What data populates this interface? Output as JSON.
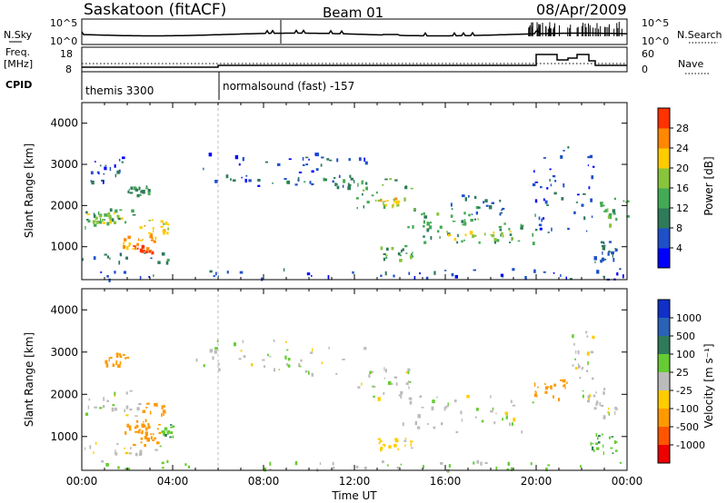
{
  "header": {
    "station": "Saskatoon (fitACF)",
    "beam": "Beam 01",
    "date": "08/Apr/2009"
  },
  "noise_panel": {
    "left_label": "N.Sky",
    "right_label": "N.Search",
    "left_ticks": [
      "10^5",
      "10^0"
    ],
    "right_ticks": [
      "10^5",
      "10^0"
    ]
  },
  "freq_panel": {
    "left_label_top": "Freq.",
    "left_label_bottom": "[MHz]",
    "right_label": "Nave",
    "left_ticks": [
      "18",
      "8"
    ],
    "right_ticks": [
      "60",
      "0"
    ]
  },
  "cpid": {
    "label": "CPID",
    "segments": [
      {
        "name": "themis 3300",
        "start_hour": 0
      },
      {
        "name": "normalsound (fast) -157",
        "start_hour": 6
      }
    ]
  },
  "colors": {
    "power": [
      "#0000ff",
      "#1e50c8",
      "#2e7b5a",
      "#44aa55",
      "#88c43c",
      "#ffcc00",
      "#ff8800",
      "#ff3300",
      "#ee0000"
    ],
    "velocity": [
      "#1030c8",
      "#2a62b8",
      "#2e7b5a",
      "#66cc33",
      "#bbbbbb",
      "#ffcc00",
      "#ff9900",
      "#ff5500",
      "#ee0000"
    ]
  },
  "chart_data": [
    {
      "type": "heatmap",
      "name": "power",
      "xlabel": "",
      "ylabel": "Slant Range [km]",
      "xlim": [
        0,
        24
      ],
      "ylim": [
        200,
        4500
      ],
      "yticks": [
        "1000",
        "2000",
        "3000",
        "4000"
      ],
      "colorbar_label": "Power [dB]",
      "colorbar_ticks": [
        "4",
        "8",
        "12",
        "16",
        "20",
        "24",
        "28"
      ],
      "bands": [
        {
          "t": [
            0.0,
            2.5
          ],
          "r": [
            1500,
            2000
          ],
          "v": 12
        },
        {
          "t": [
            0.2,
            1.8
          ],
          "r": [
            1600,
            1850
          ],
          "v": 20
        },
        {
          "t": [
            0.0,
            4.0
          ],
          "r": [
            650,
            900
          ],
          "v": 10
        },
        {
          "t": [
            1.8,
            3.5
          ],
          "r": [
            900,
            1300
          ],
          "v": 24
        },
        {
          "t": [
            2.2,
            3.2
          ],
          "r": [
            850,
            1050
          ],
          "v": 28
        },
        {
          "t": [
            2.5,
            3.8
          ],
          "r": [
            1300,
            1700
          ],
          "v": 22
        },
        {
          "t": [
            2.0,
            3.0
          ],
          "r": [
            2200,
            2500
          ],
          "v": 12
        },
        {
          "t": [
            0.3,
            1.8
          ],
          "r": [
            2600,
            3200
          ],
          "v": 6
        },
        {
          "t": [
            5.0,
            12.5
          ],
          "r": [
            2500,
            3300
          ],
          "v": 6
        },
        {
          "t": [
            9.0,
            12.5
          ],
          "r": [
            2450,
            2700
          ],
          "v": 10
        },
        {
          "t": [
            12.0,
            14.5
          ],
          "r": [
            1900,
            2700
          ],
          "v": 14
        },
        {
          "t": [
            13.0,
            14.0
          ],
          "r": [
            2000,
            2200
          ],
          "v": 22
        },
        {
          "t": [
            14.0,
            17.5
          ],
          "r": [
            1500,
            2000
          ],
          "v": 14
        },
        {
          "t": [
            15.0,
            20.0
          ],
          "r": [
            1100,
            1700
          ],
          "v": 12
        },
        {
          "t": [
            16.0,
            19.0
          ],
          "r": [
            1200,
            1400
          ],
          "v": 20
        },
        {
          "t": [
            16.0,
            18.5
          ],
          "r": [
            1800,
            2300
          ],
          "v": 8
        },
        {
          "t": [
            13.0,
            14.6
          ],
          "r": [
            700,
            1050
          ],
          "v": 14
        },
        {
          "t": [
            19.8,
            22.5
          ],
          "r": [
            1300,
            3500
          ],
          "v": 6
        },
        {
          "t": [
            22.8,
            24.0
          ],
          "r": [
            1500,
            2200
          ],
          "v": 14
        },
        {
          "t": [
            22.5,
            23.5
          ],
          "r": [
            600,
            1200
          ],
          "v": 8
        },
        {
          "t": [
            0.0,
            24.0
          ],
          "r": [
            220,
            500
          ],
          "v": 6
        }
      ]
    },
    {
      "type": "heatmap",
      "name": "velocity",
      "xlabel": "Time UT",
      "ylabel": "Slant Range [km]",
      "xlim": [
        0,
        24
      ],
      "ylim": [
        200,
        4500
      ],
      "xticks": [
        "00:00",
        "04:00",
        "08:00",
        "12:00",
        "16:00",
        "20:00",
        "00:00"
      ],
      "yticks": [
        "1000",
        "2000",
        "3000",
        "4000"
      ],
      "colorbar_label": "Velocity [m s⁻¹]",
      "colorbar_ticks": [
        "1000",
        "500",
        "100",
        "25",
        "-25",
        "-100",
        "-500",
        "-1000"
      ],
      "bands": [
        {
          "t": [
            0.0,
            2.5
          ],
          "r": [
            1500,
            2100
          ],
          "v": 0
        },
        {
          "t": [
            0.0,
            3.5
          ],
          "r": [
            600,
            900
          ],
          "v": 0
        },
        {
          "t": [
            1.5,
            3.0
          ],
          "r": [
            1100,
            1400
          ],
          "v": -150
        },
        {
          "t": [
            2.0,
            3.5
          ],
          "r": [
            800,
            1300
          ],
          "v": -300
        },
        {
          "t": [
            2.5,
            3.8
          ],
          "r": [
            1300,
            1800
          ],
          "v": -200
        },
        {
          "t": [
            3.5,
            4.0
          ],
          "r": [
            1000,
            1300
          ],
          "v": 80
        },
        {
          "t": [
            1.0,
            2.0
          ],
          "r": [
            2700,
            3000
          ],
          "v": -150
        },
        {
          "t": [
            5.0,
            12.5
          ],
          "r": [
            2500,
            3300
          ],
          "v": 0
        },
        {
          "t": [
            12.0,
            14.5
          ],
          "r": [
            1900,
            2700
          ],
          "v": 0
        },
        {
          "t": [
            14.0,
            20.0
          ],
          "r": [
            1100,
            2000
          ],
          "v": 0
        },
        {
          "t": [
            13.0,
            14.6
          ],
          "r": [
            700,
            1000
          ],
          "v": -60
        },
        {
          "t": [
            19.8,
            21.5
          ],
          "r": [
            1900,
            2400
          ],
          "v": -400
        },
        {
          "t": [
            21.5,
            22.5
          ],
          "r": [
            2300,
            3500
          ],
          "v": 0
        },
        {
          "t": [
            22.0,
            23.5
          ],
          "r": [
            1500,
            2200
          ],
          "v": 0
        },
        {
          "t": [
            22.3,
            23.5
          ],
          "r": [
            600,
            1100
          ],
          "v": 80
        },
        {
          "t": [
            0.0,
            24.0
          ],
          "r": [
            220,
            450
          ],
          "v": 40
        }
      ]
    }
  ]
}
